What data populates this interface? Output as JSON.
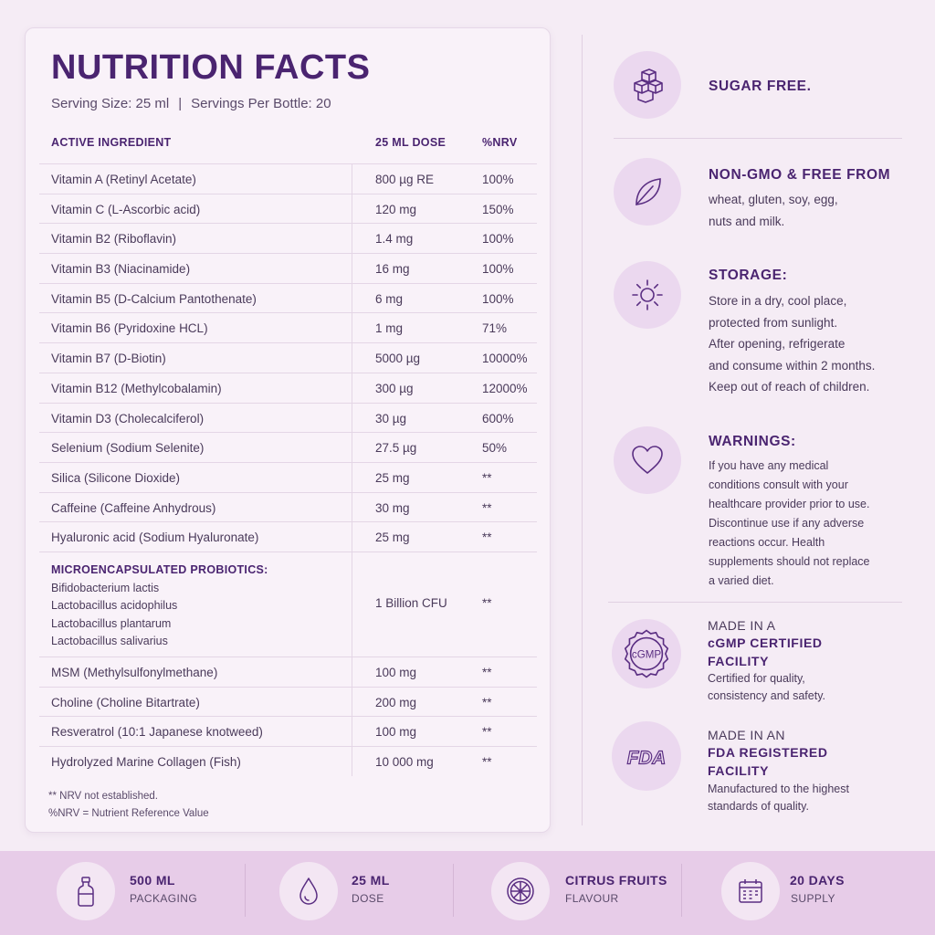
{
  "nutrition": {
    "title": "NUTRITION FACTS",
    "serving_size": "Serving Size: 25 ml",
    "separator": "|",
    "servings_per_bottle": "Servings Per Bottle: 20",
    "headers": {
      "ingredient": "ACTIVE INGREDIENT",
      "dose": "25 ML DOSE",
      "nrv": "%NRV"
    },
    "rows": [
      {
        "ingredient": "Vitamin A (Retinyl Acetate)",
        "dose": "800 µg RE",
        "nrv": "100%"
      },
      {
        "ingredient": "Vitamin C (L-Ascorbic acid)",
        "dose": "120 mg",
        "nrv": "150%"
      },
      {
        "ingredient": "Vitamin B2 (Riboflavin)",
        "dose": "1.4 mg",
        "nrv": "100%"
      },
      {
        "ingredient": "Vitamin B3 (Niacinamide)",
        "dose": "16 mg",
        "nrv": "100%"
      },
      {
        "ingredient": "Vitamin B5 (D-Calcium Pantothenate)",
        "dose": "6 mg",
        "nrv": "100%"
      },
      {
        "ingredient": "Vitamin B6 (Pyridoxine HCL)",
        "dose": "1 mg",
        "nrv": "71%"
      },
      {
        "ingredient": "Vitamin B7 (D-Biotin)",
        "dose": "5000 µg",
        "nrv": "10000%"
      },
      {
        "ingredient": "Vitamin B12 (Methylcobalamin)",
        "dose": "300 µg",
        "nrv": "12000%"
      },
      {
        "ingredient": "Vitamin D3 (Cholecalciferol)",
        "dose": "30 µg",
        "nrv": "600%"
      },
      {
        "ingredient": "Selenium (Sodium Selenite)",
        "dose": "27.5 µg",
        "nrv": "50%"
      },
      {
        "ingredient": "Silica (Silicone Dioxide)",
        "dose": "25 mg",
        "nrv": "**"
      },
      {
        "ingredient": "Caffeine (Caffeine Anhydrous)",
        "dose": "30 mg",
        "nrv": "**"
      },
      {
        "ingredient": "Hyaluronic acid (Sodium Hyaluronate)",
        "dose": "25 mg",
        "nrv": "**"
      }
    ],
    "probiotics": {
      "title": "MICROENCAPSULATED PROBIOTICS:",
      "strains": [
        "Bifidobacterium lactis",
        "Lactobacillus acidophilus",
        "Lactobacillus plantarum",
        "Lactobacillus salivarius"
      ],
      "dose": "1 Billion CFU",
      "nrv": "**"
    },
    "rows_after": [
      {
        "ingredient": "MSM (Methylsulfonylmethane)",
        "dose": "100 mg",
        "nrv": "**"
      },
      {
        "ingredient": "Choline (Choline Bitartrate)",
        "dose": "200 mg",
        "nrv": "**"
      },
      {
        "ingredient": "Resveratrol (10:1 Japanese knotweed)",
        "dose": "100 mg",
        "nrv": "**"
      },
      {
        "ingredient": "Hydrolyzed Marine Collagen (Fish)",
        "dose": "10 000 mg",
        "nrv": "**"
      }
    ],
    "notes": [
      "** NRV not established.",
      "%NRV = Nutrient Reference Value"
    ]
  },
  "features": {
    "sugar_free": {
      "icon": "sugar-cubes-icon",
      "title": "SUGAR FREE."
    },
    "non_gmo": {
      "icon": "leaf-icon",
      "title": "NON-GMO & FREE FROM",
      "lines": [
        "wheat, gluten, soy, egg,",
        "nuts and milk."
      ]
    },
    "storage": {
      "icon": "sun-icon",
      "title": "STORAGE:",
      "lines": [
        "Store in a dry, cool place,",
        "protected from sunlight.",
        "After opening, refrigerate",
        "and consume within 2 months.",
        "Keep out of reach of children."
      ]
    },
    "warnings": {
      "icon": "heart-icon",
      "title": "WARNINGS:",
      "lines": [
        "If you have any medical",
        "conditions consult with your",
        "healthcare provider prior to use.",
        "Discontinue use if any adverse",
        "reactions occur. Health",
        "supplements should not replace",
        "a varied diet."
      ]
    },
    "cgmp": {
      "icon": "cgmp-seal-icon",
      "seal_text": "cGMP",
      "pre": "MADE IN A",
      "title_lines": [
        "cGMP CERTIFIED",
        "FACILITY"
      ],
      "lines": [
        "Certified for quality,",
        "consistency and safety."
      ]
    },
    "fda": {
      "icon": "fda-logo-icon",
      "logo_text": "FDA",
      "pre": "MADE IN AN",
      "title_lines": [
        "FDA REGISTERED",
        "FACILITY"
      ],
      "lines": [
        "Manufactured to the highest",
        "standards of quality."
      ]
    }
  },
  "footer": [
    {
      "icon": "bottle-icon",
      "title": "500 ML",
      "sub": "PACKAGING"
    },
    {
      "icon": "drop-icon",
      "title": "25 ML",
      "sub": "DOSE"
    },
    {
      "icon": "citrus-icon",
      "title": "CITRUS FRUITS",
      "sub": "FLAVOUR"
    },
    {
      "icon": "calendar-icon",
      "title": "20 DAYS",
      "sub": "SUPPLY"
    }
  ],
  "colors": {
    "background": "#f5ecf5",
    "accent": "#4a2470",
    "icon_circle": "#ebd8ef",
    "footer": "#e7cce8"
  }
}
